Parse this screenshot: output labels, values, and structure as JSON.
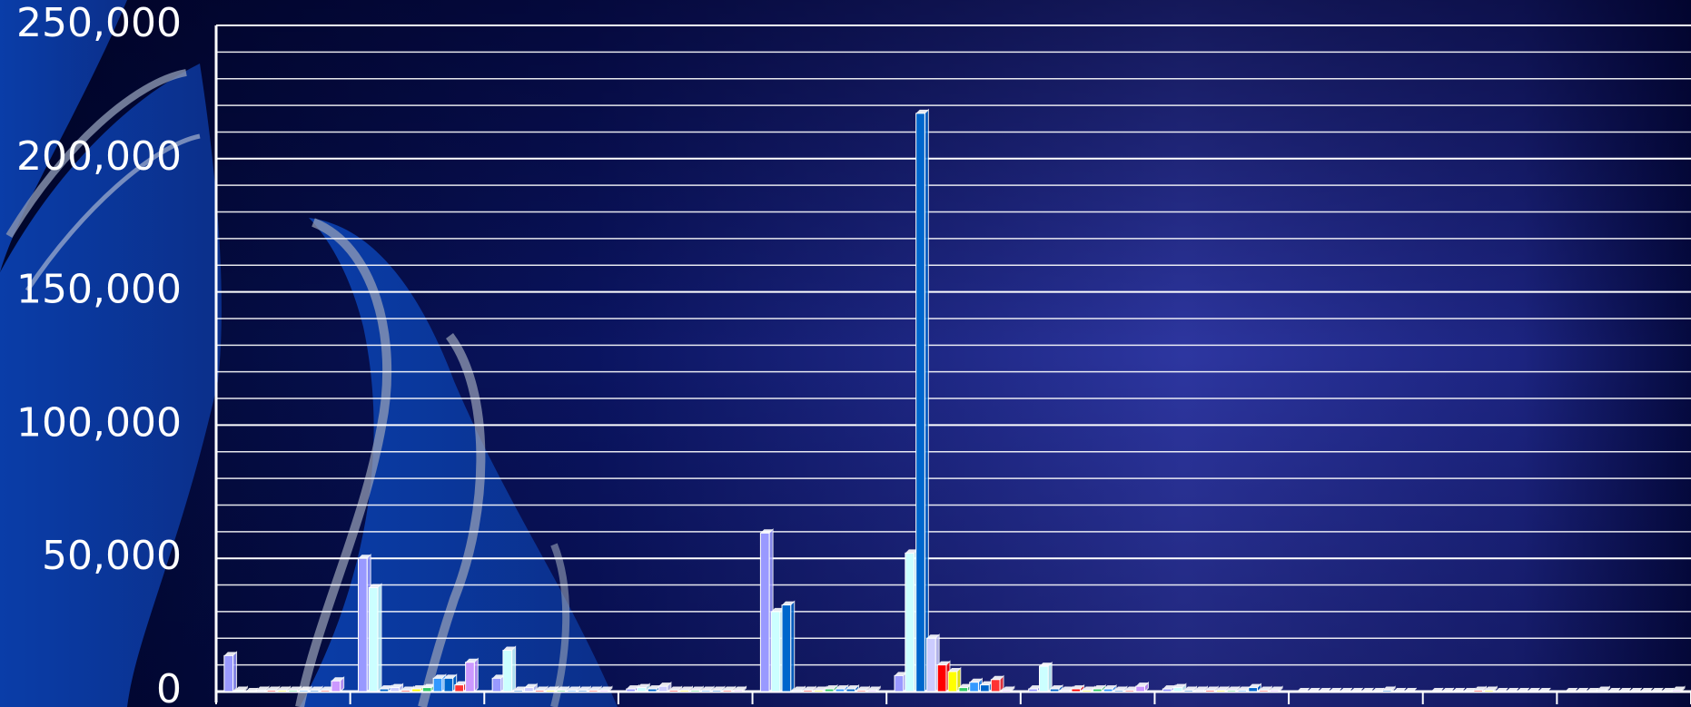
{
  "chart_data": {
    "type": "bar",
    "categories": [
      null,
      null,
      null,
      null,
      null,
      null,
      null,
      null,
      null,
      null,
      null
    ],
    "series": [
      {
        "color": "#9999ff",
        "values": [
          13500,
          50000,
          5000,
          1000,
          59500,
          6000,
          1000,
          1000,
          0,
          0,
          0
        ]
      },
      {
        "color": "#ccffff",
        "values": [
          500,
          39000,
          15500,
          1500,
          30000,
          52000,
          9500,
          1500,
          0,
          0,
          0
        ]
      },
      {
        "color": "#0066cc",
        "values": [
          0,
          1000,
          500,
          1000,
          32500,
          217000,
          1000,
          500,
          0,
          0,
          0
        ]
      },
      {
        "color": "#ccccff",
        "values": [
          500,
          1500,
          1500,
          2000,
          500,
          20000,
          500,
          500,
          0,
          0,
          500
        ]
      },
      {
        "color": "#ff0000",
        "values": [
          500,
          500,
          500,
          500,
          500,
          10000,
          1000,
          500,
          0,
          500,
          0
        ]
      },
      {
        "color": "#ffff00",
        "values": [
          500,
          1000,
          500,
          500,
          500,
          7500,
          500,
          500,
          0,
          500,
          0
        ]
      },
      {
        "color": "#33cc66",
        "values": [
          500,
          1500,
          500,
          500,
          1000,
          1500,
          1000,
          500,
          0,
          0,
          0
        ]
      },
      {
        "color": "#3399ff",
        "values": [
          500,
          5000,
          500,
          500,
          1000,
          3500,
          1000,
          500,
          0,
          0,
          0
        ]
      },
      {
        "color": "#0066cc",
        "values": [
          500,
          5000,
          500,
          500,
          1000,
          2500,
          500,
          1500,
          500,
          0,
          0
        ]
      },
      {
        "color": "#ff3333",
        "values": [
          500,
          2500,
          500,
          500,
          500,
          4500,
          500,
          500,
          0,
          0,
          0
        ]
      },
      {
        "color": "#cc99ff",
        "values": [
          4000,
          11000,
          500,
          500,
          500,
          500,
          2000,
          500,
          0,
          0,
          500
        ]
      }
    ],
    "ylim": [
      0,
      250000
    ],
    "yticks": [
      {
        "value": 0,
        "label": "0"
      },
      {
        "value": 50000,
        "label": "50,000"
      },
      {
        "value": 100000,
        "label": "100,000"
      },
      {
        "value": 150000,
        "label": "150,000"
      },
      {
        "value": 200000,
        "label": "200,000"
      },
      {
        "value": 250000,
        "label": "250,000"
      }
    ],
    "minor_yticks": [
      10000,
      20000,
      30000,
      40000,
      60000,
      70000,
      80000,
      90000,
      110000,
      120000,
      130000,
      140000,
      160000,
      170000,
      180000,
      190000,
      210000,
      220000,
      230000,
      240000
    ],
    "grid": true
  }
}
